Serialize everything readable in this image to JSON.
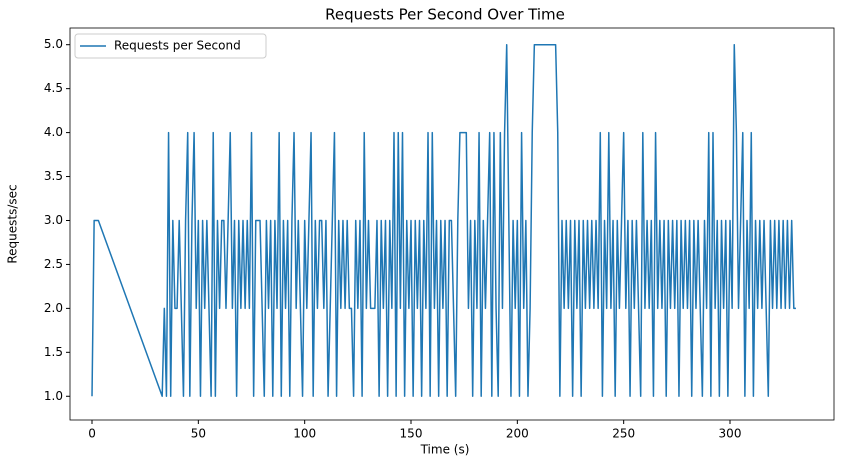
{
  "chart_data": {
    "type": "line",
    "title": "Requests Per Second Over Time",
    "xlabel": "Time (s)",
    "ylabel": "Requests/sec",
    "legend": "upper left",
    "xlim": [
      -10.35,
      348.9
    ],
    "ylim": [
      0.73,
      5.19
    ],
    "xticks": [
      0,
      50,
      100,
      150,
      200,
      250,
      300
    ],
    "yticks": [
      {
        "value": 1.0,
        "label": "1.0"
      },
      {
        "value": 1.5,
        "label": "1.5"
      },
      {
        "value": 2.0,
        "label": "2.0"
      },
      {
        "value": 2.5,
        "label": "2.5"
      },
      {
        "value": 3.0,
        "label": "3.0"
      },
      {
        "value": 3.5,
        "label": "3.5"
      },
      {
        "value": 4.0,
        "label": "4.0"
      },
      {
        "value": 4.5,
        "label": "4.5"
      },
      {
        "value": 5.0,
        "label": "5.0"
      }
    ],
    "x": [
      0,
      1,
      3,
      33,
      34,
      35,
      36,
      37,
      38,
      39,
      40,
      41,
      42,
      43,
      44,
      45,
      46,
      47,
      48,
      49,
      50,
      51,
      52,
      53,
      54,
      55,
      56,
      57,
      58,
      59,
      60,
      61,
      62,
      63,
      64,
      65,
      66,
      67,
      68,
      69,
      70,
      71,
      72,
      73,
      74,
      75,
      76,
      77,
      78,
      79,
      80,
      81,
      82,
      83,
      84,
      85,
      86,
      87,
      88,
      89,
      90,
      91,
      92,
      93,
      94,
      95,
      96,
      97,
      98,
      99,
      100,
      101,
      102,
      103,
      104,
      105,
      106,
      107,
      108,
      109,
      110,
      111,
      112,
      113,
      114,
      115,
      116,
      117,
      118,
      119,
      120,
      121,
      122,
      123,
      124,
      125,
      126,
      127,
      128,
      129,
      130,
      131,
      132,
      133,
      134,
      135,
      136,
      137,
      138,
      139,
      140,
      141,
      142,
      143,
      144,
      145,
      146,
      147,
      148,
      149,
      150,
      151,
      152,
      153,
      154,
      155,
      156,
      157,
      158,
      159,
      160,
      161,
      162,
      163,
      164,
      165,
      166,
      167,
      168,
      169,
      170,
      171,
      172,
      173,
      174,
      175,
      176,
      177,
      178,
      179,
      180,
      181,
      182,
      183,
      184,
      185,
      186,
      187,
      188,
      189,
      190,
      191,
      192,
      193,
      194,
      195,
      196,
      197,
      198,
      199,
      200,
      201,
      202,
      203,
      204,
      205,
      206,
      207,
      208,
      209,
      210,
      211,
      212,
      213,
      214,
      215,
      216,
      217,
      218,
      219,
      220,
      221,
      222,
      223,
      224,
      225,
      226,
      227,
      228,
      229,
      230,
      231,
      232,
      233,
      234,
      235,
      236,
      237,
      238,
      239,
      240,
      241,
      242,
      243,
      244,
      245,
      246,
      247,
      248,
      249,
      250,
      251,
      252,
      253,
      254,
      255,
      256,
      257,
      258,
      259,
      260,
      261,
      262,
      263,
      264,
      265,
      266,
      267,
      268,
      269,
      270,
      271,
      272,
      273,
      274,
      275,
      276,
      277,
      278,
      279,
      280,
      281,
      282,
      283,
      284,
      285,
      286,
      287,
      288,
      289,
      290,
      291,
      292,
      293,
      294,
      295,
      296,
      297,
      298,
      299,
      300,
      301,
      302,
      303,
      304,
      305,
      306,
      307,
      308,
      309,
      310,
      311,
      312,
      313,
      314,
      315,
      316,
      317,
      318,
      319,
      320,
      321,
      322,
      323,
      324,
      325,
      326,
      327,
      328,
      329,
      330,
      331
    ],
    "series": [
      {
        "name": "Requests per Second",
        "color": "#1f77b4",
        "values": [
          1,
          3,
          3,
          1,
          2,
          1,
          4,
          1,
          3,
          2,
          2,
          3,
          2,
          1,
          3,
          4,
          1,
          3,
          4,
          2,
          3,
          1,
          3,
          2,
          3,
          2,
          1,
          4,
          1,
          3,
          2,
          3,
          3,
          2,
          3,
          4,
          2,
          3,
          1,
          3,
          2,
          3,
          2,
          3,
          2,
          4,
          1,
          3,
          3,
          3,
          2,
          1,
          3,
          2,
          3,
          1,
          3,
          2,
          4,
          1,
          3,
          2,
          3,
          1,
          3,
          4,
          2,
          3,
          2,
          1,
          3,
          2,
          3,
          4,
          1,
          3,
          2,
          3,
          3,
          2,
          3,
          1,
          2,
          3,
          4,
          1,
          3,
          2,
          3,
          2,
          3,
          2,
          2,
          1,
          3,
          2,
          3,
          1,
          4,
          2,
          3,
          2,
          2,
          2,
          3,
          1,
          3,
          2,
          3,
          1,
          3,
          2,
          4,
          1,
          4,
          2,
          4,
          1,
          3,
          2,
          3,
          1,
          3,
          2,
          3,
          1,
          3,
          2,
          4,
          1,
          4,
          2,
          3,
          1,
          3,
          2,
          3,
          1,
          3,
          3,
          2,
          1,
          3,
          4,
          4,
          4,
          4,
          2,
          3,
          1,
          3,
          2,
          4,
          1,
          3,
          2,
          3,
          4,
          1,
          4,
          2,
          1,
          4,
          2,
          4,
          5,
          3,
          1,
          3,
          2,
          3,
          1,
          4,
          2,
          3,
          1,
          2,
          4,
          5,
          5,
          5,
          5,
          5,
          5,
          5,
          5,
          5,
          5,
          5,
          4,
          1,
          3,
          2,
          3,
          2,
          3,
          1,
          3,
          2,
          3,
          1,
          3,
          2,
          3,
          2,
          3,
          2,
          3,
          2,
          4,
          1,
          3,
          2,
          4,
          2,
          3,
          1,
          3,
          2,
          3,
          4,
          2,
          3,
          1,
          3,
          2,
          3,
          2,
          1,
          4,
          2,
          3,
          2,
          3,
          1,
          4,
          2,
          3,
          2,
          3,
          1,
          3,
          2,
          3,
          2,
          3,
          1,
          3,
          2,
          3,
          2,
          3,
          1,
          3,
          2,
          3,
          2,
          1,
          3,
          2,
          4,
          1,
          4,
          2,
          3,
          1,
          3,
          2,
          3,
          1,
          3,
          2,
          5,
          4,
          2,
          3,
          4,
          1,
          3,
          2,
          4,
          1,
          3,
          2,
          3,
          2,
          3,
          2,
          1,
          3,
          2,
          3,
          2,
          3,
          2,
          3,
          2,
          3,
          2,
          3,
          2,
          2
        ]
      }
    ]
  }
}
